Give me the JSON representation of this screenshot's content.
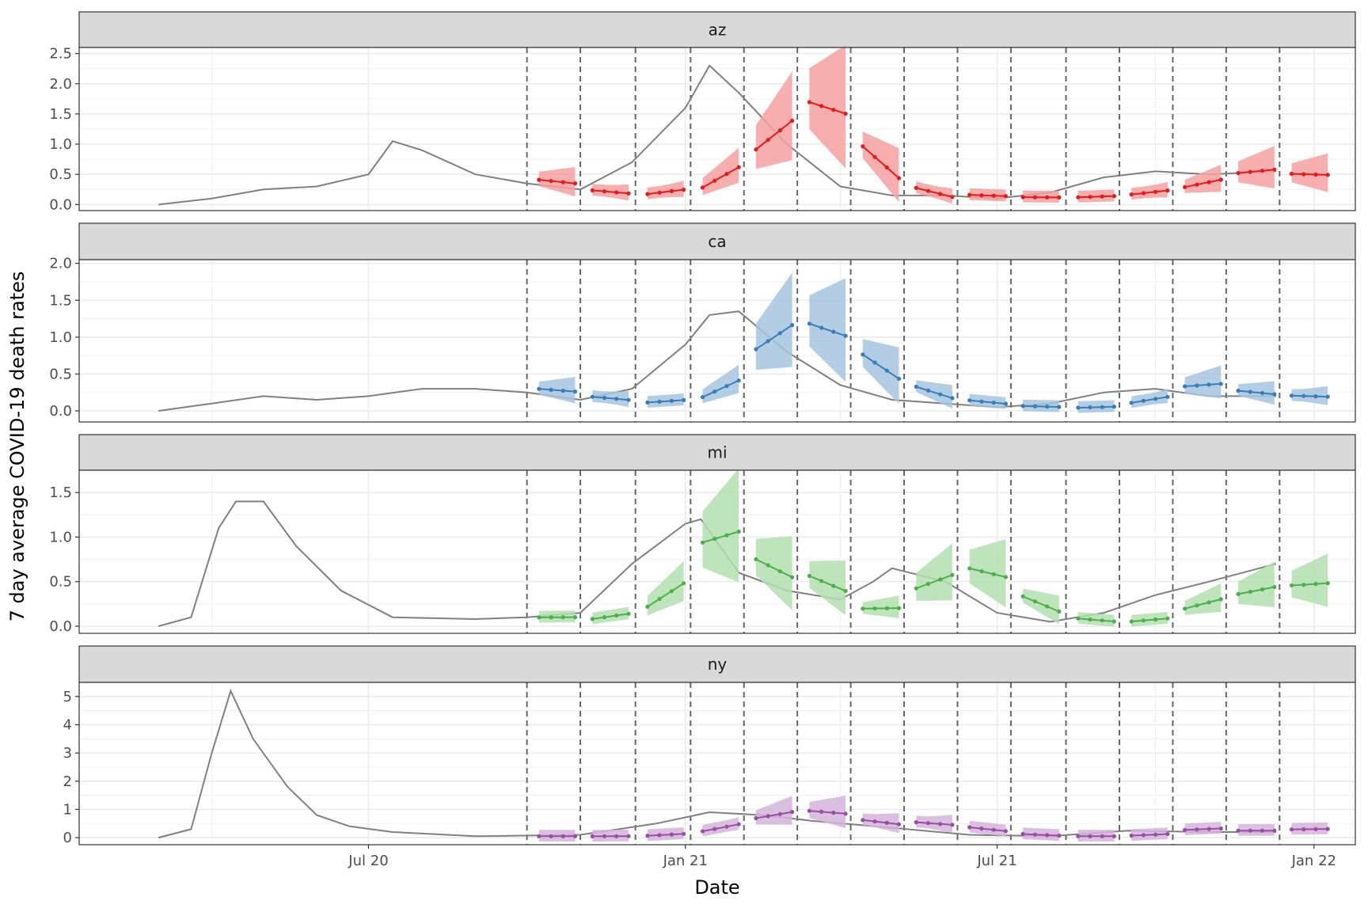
{
  "chart_data": {
    "type": "line",
    "xlabel": "Date",
    "ylabel": "7 day average COVID-19 death rates",
    "x_ticks": [
      "Jul 20",
      "Jan 21",
      "Jul 21",
      "Jan 22"
    ],
    "x_tick_dates": [
      "2020-07-01",
      "2021-01-01",
      "2021-07-01",
      "2022-01-01"
    ],
    "xlim": [
      "2020-01-15",
      "2022-01-25"
    ],
    "forecast_dates": [
      "2020-10-01",
      "2020-11-01",
      "2020-12-03",
      "2021-01-04",
      "2021-02-04",
      "2021-03-07",
      "2021-04-07",
      "2021-05-08",
      "2021-06-08",
      "2021-07-09",
      "2021-08-10",
      "2021-09-10",
      "2021-10-11",
      "2021-11-11",
      "2021-12-12"
    ],
    "grid": true,
    "panels": [
      {
        "name": "az",
        "color": "#e41a1c",
        "band_color": "#f4a0a0",
        "ylim": [
          -0.1,
          2.6
        ],
        "y_ticks": [
          "0.0",
          "0.5",
          "1.0",
          "1.5",
          "2.0",
          "2.5"
        ],
        "y_tick_values": [
          0,
          0.5,
          1.0,
          1.5,
          2.0,
          2.5
        ],
        "series": [
          {
            "name": "observed",
            "x": [
              "2020-03-01",
              "2020-04-01",
              "2020-05-01",
              "2020-06-01",
              "2020-07-01",
              "2020-07-15",
              "2020-08-01",
              "2020-09-01",
              "2020-10-01",
              "2020-11-01",
              "2020-12-01",
              "2021-01-01",
              "2021-01-15",
              "2021-02-01",
              "2021-03-01",
              "2021-04-01",
              "2021-05-01",
              "2021-06-01",
              "2021-07-01",
              "2021-08-01",
              "2021-09-01",
              "2021-10-01",
              "2021-11-01",
              "2021-12-10"
            ],
            "y": [
              0.0,
              0.1,
              0.25,
              0.3,
              0.5,
              1.05,
              0.9,
              0.5,
              0.35,
              0.25,
              0.7,
              1.6,
              2.3,
              1.85,
              1.0,
              0.3,
              0.15,
              0.15,
              0.1,
              0.2,
              0.45,
              0.55,
              0.5,
              0.55
            ]
          },
          {
            "name": "forecast",
            "x": [
              "2020-10-01",
              "2020-11-01",
              "2020-12-03",
              "2021-01-04",
              "2021-02-04",
              "2021-03-07",
              "2021-04-07",
              "2021-05-08",
              "2021-06-08",
              "2021-07-09",
              "2021-08-10",
              "2021-09-10",
              "2021-10-11",
              "2021-11-11",
              "2021-12-12"
            ],
            "y": [
              0.38,
              0.21,
              0.21,
              0.45,
              1.15,
              1.6,
              0.7,
              0.2,
              0.15,
              0.12,
              0.13,
              0.2,
              0.35,
              0.55,
              0.5
            ]
          }
        ]
      },
      {
        "name": "ca",
        "color": "#377eb8",
        "band_color": "#a6c4e0",
        "ylim": [
          -0.15,
          2.05
        ],
        "y_ticks": [
          "0.0",
          "0.5",
          "1.0",
          "1.5",
          "2.0"
        ],
        "y_tick_values": [
          0,
          0.5,
          1.0,
          1.5,
          2.0
        ],
        "series": [
          {
            "name": "observed",
            "x": [
              "2020-03-01",
              "2020-04-01",
              "2020-05-01",
              "2020-06-01",
              "2020-07-01",
              "2020-08-01",
              "2020-09-01",
              "2020-10-01",
              "2020-11-01",
              "2020-12-01",
              "2021-01-01",
              "2021-01-15",
              "2021-02-01",
              "2021-03-01",
              "2021-04-01",
              "2021-05-01",
              "2021-06-01",
              "2021-07-01",
              "2021-08-01",
              "2021-09-01",
              "2021-10-01",
              "2021-11-01",
              "2021-12-10"
            ],
            "y": [
              0.0,
              0.1,
              0.2,
              0.15,
              0.2,
              0.3,
              0.3,
              0.25,
              0.15,
              0.3,
              0.9,
              1.3,
              1.35,
              0.8,
              0.35,
              0.15,
              0.1,
              0.05,
              0.1,
              0.25,
              0.3,
              0.2,
              0.2
            ]
          },
          {
            "name": "forecast",
            "x": [
              "2020-10-01",
              "2020-11-01",
              "2020-12-03",
              "2021-01-04",
              "2021-02-04",
              "2021-03-07",
              "2021-04-07",
              "2021-05-08",
              "2021-06-08",
              "2021-07-09",
              "2021-08-10",
              "2021-09-10",
              "2021-10-11",
              "2021-11-11",
              "2021-12-12"
            ],
            "y": [
              0.28,
              0.17,
              0.13,
              0.3,
              1.0,
              1.1,
              0.6,
              0.25,
              0.12,
              0.06,
              0.05,
              0.15,
              0.35,
              0.25,
              0.2
            ]
          }
        ]
      },
      {
        "name": "mi",
        "color": "#4daf4a",
        "band_color": "#b3dfb0",
        "ylim": [
          -0.08,
          1.75
        ],
        "y_ticks": [
          "0.0",
          "0.5",
          "1.0",
          "1.5"
        ],
        "y_tick_values": [
          0,
          0.5,
          1.0,
          1.5
        ],
        "series": [
          {
            "name": "observed",
            "x": [
              "2020-03-01",
              "2020-03-20",
              "2020-04-05",
              "2020-04-15",
              "2020-05-01",
              "2020-05-20",
              "2020-06-15",
              "2020-07-15",
              "2020-09-01",
              "2020-10-01",
              "2020-11-01",
              "2020-12-01",
              "2021-01-01",
              "2021-01-10",
              "2021-02-01",
              "2021-03-01",
              "2021-04-01",
              "2021-04-20",
              "2021-05-01",
              "2021-06-01",
              "2021-07-01",
              "2021-08-01",
              "2021-09-01",
              "2021-10-01",
              "2021-11-01",
              "2021-12-10"
            ],
            "y": [
              0.0,
              0.1,
              1.1,
              1.4,
              1.4,
              0.9,
              0.4,
              0.1,
              0.08,
              0.1,
              0.15,
              0.7,
              1.15,
              1.2,
              0.6,
              0.4,
              0.3,
              0.5,
              0.65,
              0.5,
              0.15,
              0.05,
              0.15,
              0.35,
              0.5,
              0.7
            ]
          },
          {
            "name": "forecast",
            "x": [
              "2020-10-01",
              "2020-11-01",
              "2020-12-03",
              "2021-01-04",
              "2021-02-04",
              "2021-03-07",
              "2021-04-07",
              "2021-05-08",
              "2021-06-08",
              "2021-07-09",
              "2021-08-10",
              "2021-09-10",
              "2021-10-11",
              "2021-11-11",
              "2021-12-12"
            ],
            "y": [
              0.1,
              0.11,
              0.35,
              1.0,
              0.65,
              0.48,
              0.2,
              0.5,
              0.6,
              0.25,
              0.07,
              0.07,
              0.25,
              0.4,
              0.47
            ]
          }
        ]
      },
      {
        "name": "ny",
        "color": "#984ea3",
        "band_color": "#d4b4da",
        "ylim": [
          -0.25,
          5.5
        ],
        "y_ticks": [
          "0",
          "1",
          "2",
          "3",
          "4",
          "5"
        ],
        "y_tick_values": [
          0,
          1,
          2,
          3,
          4,
          5
        ],
        "series": [
          {
            "name": "observed",
            "x": [
              "2020-03-01",
              "2020-03-20",
              "2020-04-01",
              "2020-04-12",
              "2020-04-25",
              "2020-05-15",
              "2020-06-01",
              "2020-06-20",
              "2020-07-15",
              "2020-09-01",
              "2020-11-01",
              "2020-12-15",
              "2021-01-15",
              "2021-02-15",
              "2021-03-15",
              "2021-05-01",
              "2021-06-15",
              "2021-08-01",
              "2021-09-15",
              "2021-11-01",
              "2021-12-10"
            ],
            "y": [
              0.0,
              0.3,
              3.0,
              5.2,
              3.5,
              1.8,
              0.8,
              0.4,
              0.2,
              0.05,
              0.1,
              0.5,
              0.9,
              0.8,
              0.6,
              0.35,
              0.1,
              0.05,
              0.25,
              0.2,
              0.2
            ]
          },
          {
            "name": "forecast",
            "x": [
              "2020-10-01",
              "2020-11-01",
              "2020-12-03",
              "2021-01-04",
              "2021-02-04",
              "2021-03-07",
              "2021-04-07",
              "2021-05-08",
              "2021-06-08",
              "2021-07-09",
              "2021-08-10",
              "2021-09-10",
              "2021-10-11",
              "2021-11-11",
              "2021-12-12"
            ],
            "y": [
              0.05,
              0.05,
              0.1,
              0.35,
              0.8,
              0.9,
              0.55,
              0.5,
              0.3,
              0.1,
              0.05,
              0.1,
              0.3,
              0.25,
              0.3
            ]
          }
        ]
      }
    ]
  }
}
